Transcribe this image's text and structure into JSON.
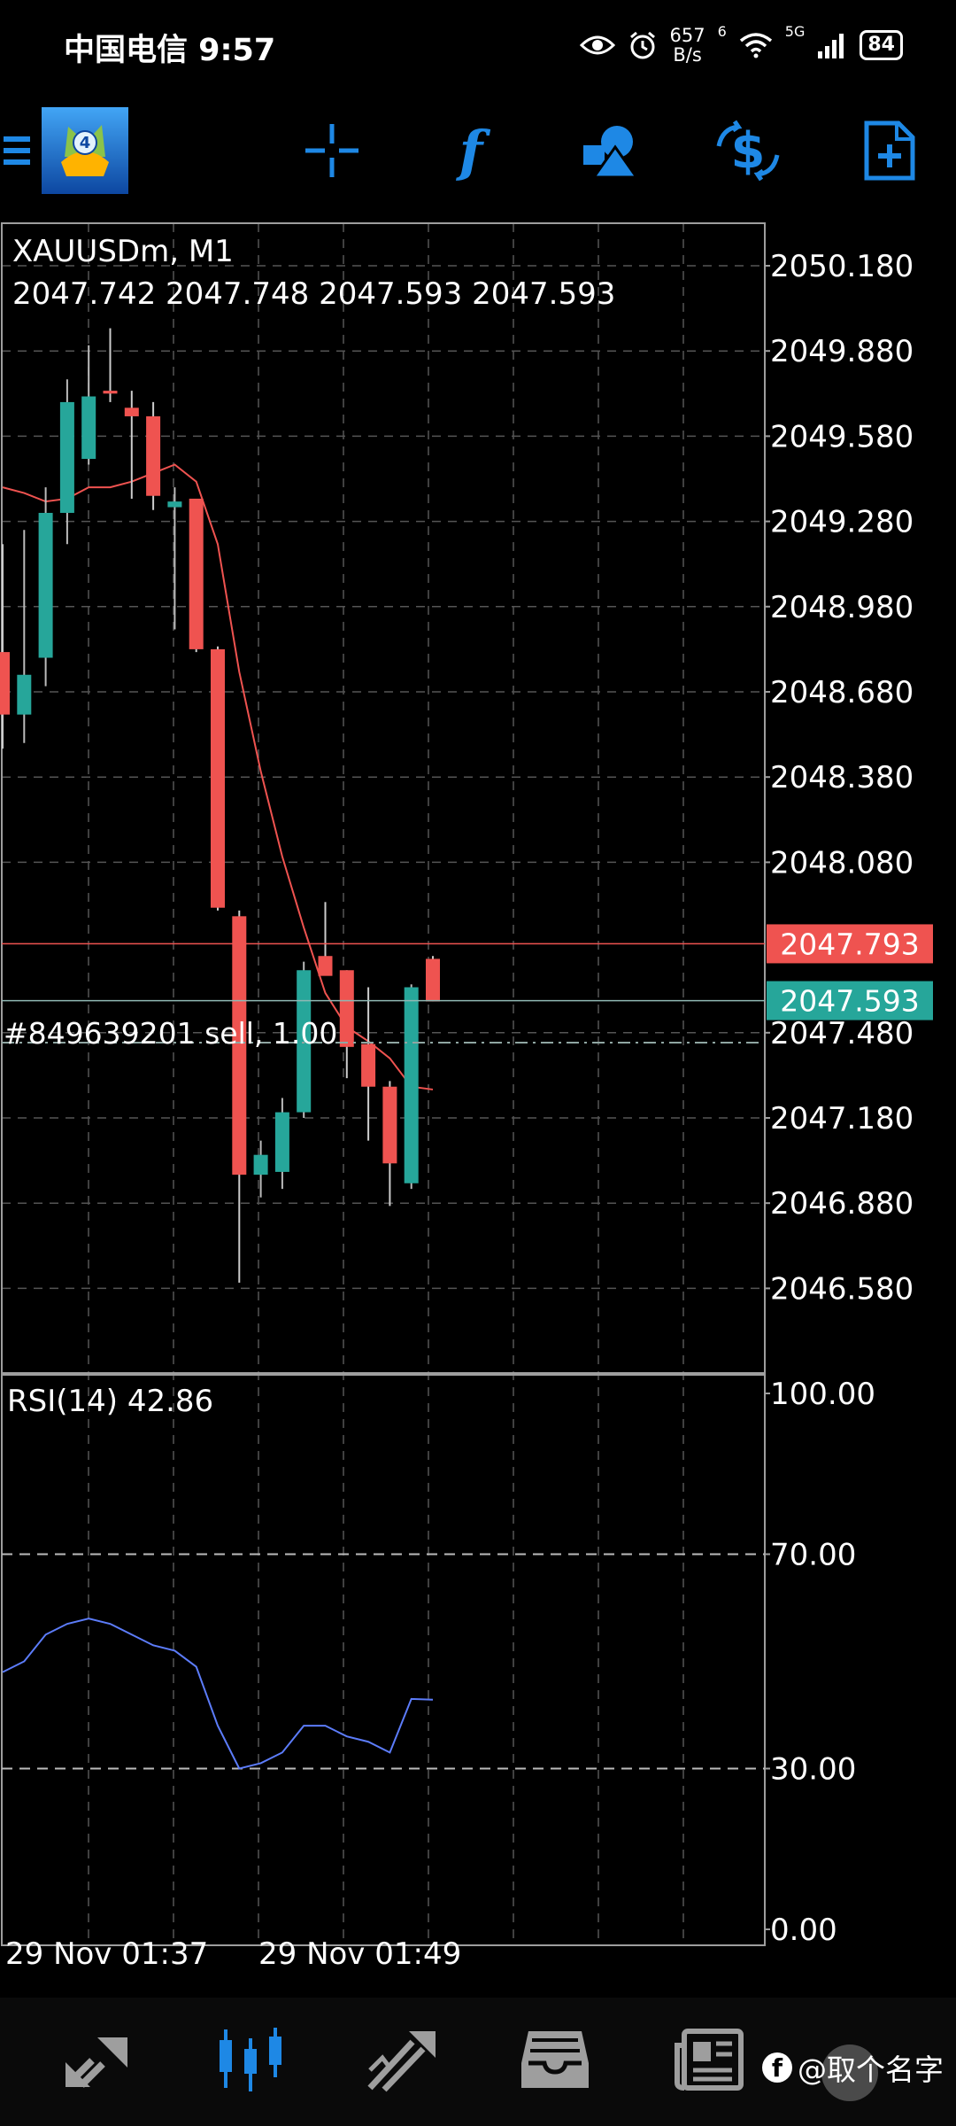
{
  "status_bar": {
    "time": "中国电信 9:57",
    "net_speed_value": "657",
    "net_speed_unit": "B/s",
    "signal_label": "6",
    "signal_label_2": "5G",
    "battery": "84",
    "icons": [
      "eye-icon",
      "alarm-icon",
      "wifi-icon",
      "signal-icon",
      "battery-icon"
    ]
  },
  "toolbar": {
    "icons": [
      "menu-icon",
      "metatrader-logo",
      "crosshair-icon",
      "function-icon",
      "objects-icon",
      "trade-icon",
      "new-order-icon"
    ],
    "accent_color": "#1e88e5"
  },
  "chart": {
    "symbol_title": "XAUUSDm, M1",
    "ohlc": "2047.742 2047.748 2047.593 2047.593",
    "bid_label": "2047.793",
    "ask_label": "2047.593",
    "order_label": "#849639201 sell, 1.00",
    "bid_color": "#ef5350",
    "ask_color": "#26a69a",
    "bull_color": "#26a69a",
    "bear_color": "#ef5350",
    "ma_color": "#ef5350",
    "rsi_color": "#5c7cfa"
  },
  "rsi": {
    "label": "RSI(14) 42.86"
  },
  "bottom_nav": {
    "icons": [
      "quotes-icon",
      "chart-icon",
      "trade-icon",
      "history-icon",
      "news-icon"
    ],
    "watermark": "@取个名字",
    "watermark_f": "f"
  },
  "chart_data": {
    "type": "candlestick",
    "title": "XAUUSDm, M1",
    "price_ticks": [
      "2050.180",
      "2049.880",
      "2049.580",
      "2049.280",
      "2048.980",
      "2048.680",
      "2048.380",
      "2048.080",
      "2047.480",
      "2047.180",
      "2046.880",
      "2046.580"
    ],
    "price_range": [
      2046.38,
      2050.4
    ],
    "time_labels": [
      "29 Nov 01:37",
      "29 Nov 01:49"
    ],
    "candles": [
      {
        "o": 2048.82,
        "h": 2049.2,
        "l": 2048.48,
        "c": 2048.6
      },
      {
        "o": 2048.6,
        "h": 2049.25,
        "l": 2048.5,
        "c": 2048.74
      },
      {
        "o": 2048.8,
        "h": 2049.4,
        "l": 2048.7,
        "c": 2049.31
      },
      {
        "o": 2049.31,
        "h": 2049.78,
        "l": 2049.2,
        "c": 2049.7
      },
      {
        "o": 2049.5,
        "h": 2049.9,
        "l": 2049.48,
        "c": 2049.72
      },
      {
        "o": 2049.74,
        "h": 2049.96,
        "l": 2049.7,
        "c": 2049.73
      },
      {
        "o": 2049.68,
        "h": 2049.74,
        "l": 2049.36,
        "c": 2049.65
      },
      {
        "o": 2049.65,
        "h": 2049.7,
        "l": 2049.32,
        "c": 2049.37
      },
      {
        "o": 2049.33,
        "h": 2049.4,
        "l": 2048.9,
        "c": 2049.35
      },
      {
        "o": 2049.36,
        "h": 2049.36,
        "l": 2048.82,
        "c": 2048.83
      },
      {
        "o": 2048.83,
        "h": 2048.84,
        "l": 2047.91,
        "c": 2047.92
      },
      {
        "o": 2047.89,
        "h": 2047.91,
        "l": 2046.6,
        "c": 2046.98
      },
      {
        "o": 2046.98,
        "h": 2047.1,
        "l": 2046.9,
        "c": 2047.05
      },
      {
        "o": 2046.99,
        "h": 2047.25,
        "l": 2046.93,
        "c": 2047.2
      },
      {
        "o": 2047.2,
        "h": 2047.73,
        "l": 2047.18,
        "c": 2047.7
      },
      {
        "o": 2047.75,
        "h": 2047.94,
        "l": 2047.7,
        "c": 2047.68
      },
      {
        "o": 2047.7,
        "h": 2047.7,
        "l": 2047.32,
        "c": 2047.43
      },
      {
        "o": 2047.44,
        "h": 2047.64,
        "l": 2047.1,
        "c": 2047.29
      },
      {
        "o": 2047.29,
        "h": 2047.31,
        "l": 2046.87,
        "c": 2047.02
      },
      {
        "o": 2046.95,
        "h": 2047.65,
        "l": 2046.93,
        "c": 2047.64
      },
      {
        "o": 2047.74,
        "h": 2047.75,
        "l": 2047.59,
        "c": 2047.59
      }
    ],
    "ma": [
      2049.4,
      2049.38,
      2049.35,
      2049.36,
      2049.4,
      2049.4,
      2049.42,
      2049.45,
      2049.48,
      2049.42,
      2049.2,
      2048.75,
      2048.4,
      2048.1,
      2047.85,
      2047.62,
      2047.5,
      2047.45,
      2047.39,
      2047.29,
      2047.28
    ],
    "bid": 2047.793,
    "ask": 2047.593,
    "order_price": 2047.445,
    "rsi": {
      "name": "RSI(14)",
      "ticks": [
        "100.00",
        "70.00",
        "30.00",
        "0.00"
      ],
      "levels": [
        70,
        30
      ],
      "range": [
        0,
        100
      ],
      "values": [
        48,
        50,
        55,
        57,
        58,
        57,
        55,
        53,
        52,
        49,
        38,
        30,
        31,
        33,
        38,
        38,
        36,
        35,
        33,
        43,
        42.86
      ]
    }
  }
}
